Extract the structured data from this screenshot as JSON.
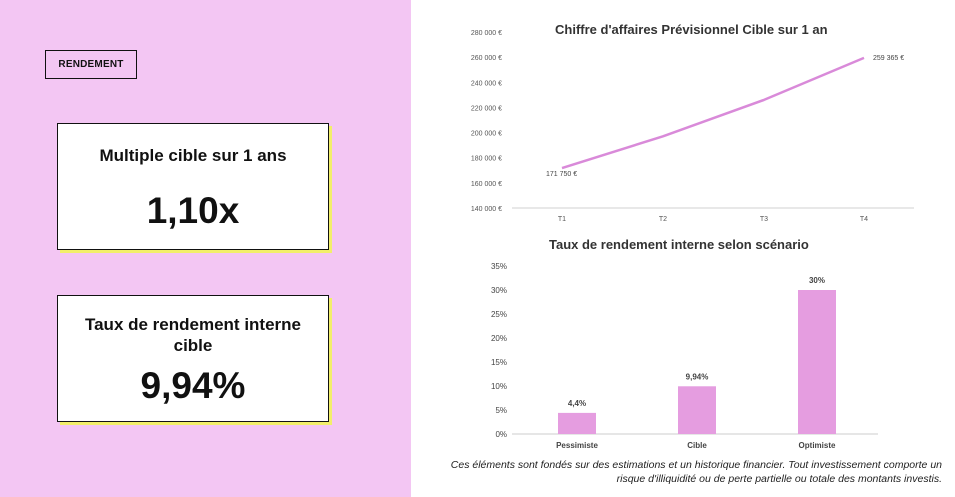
{
  "left_panel": {
    "badge": "RENDEMENT",
    "card1": {
      "title": "Multiple cible sur 1 ans",
      "value": "1,10x"
    },
    "card2": {
      "title": "Taux de rendement interne cible",
      "value": "9,94%"
    }
  },
  "colors": {
    "panel_bg": "#f3c6f3",
    "line": "#d98ad9",
    "bar": "#e59de0",
    "card_shadow": "#f2ef6a"
  },
  "note": "Ces éléments sont fondés sur des estimations et un historique financier. Tout investissement comporte un risque d'illiquidité ou de perte partielle ou totale des montants investis.",
  "chart_data": [
    {
      "type": "line",
      "title": "Chiffre d'affaires Prévisionnel Cible sur 1 an",
      "categories": [
        "T1",
        "T2",
        "T3",
        "T4"
      ],
      "values": [
        171750,
        197000,
        226000,
        259365
      ],
      "ylim": [
        140000,
        280000
      ],
      "yticks": [
        140000,
        160000,
        180000,
        200000,
        220000,
        240000,
        260000,
        280000
      ],
      "ytick_labels": [
        "140 000 €",
        "160 000 €",
        "180 000 €",
        "200 000 €",
        "220 000 €",
        "240 000 €",
        "260 000 €",
        "280 000 €"
      ],
      "data_labels": [
        {
          "index": 0,
          "text": "171 750 €"
        },
        {
          "index": 3,
          "text": "259 365 €"
        }
      ],
      "grid": false
    },
    {
      "type": "bar",
      "title": "Taux de rendement interne selon scénario",
      "categories": [
        "Pessimiste",
        "Cible",
        "Optimiste"
      ],
      "values": [
        4.4,
        9.94,
        30
      ],
      "data_labels": [
        "4,4%",
        "9,94%",
        "30%"
      ],
      "ylim": [
        0,
        35
      ],
      "yticks": [
        0,
        5,
        10,
        15,
        20,
        25,
        30,
        35
      ],
      "ytick_labels": [
        "0%",
        "5%",
        "10%",
        "15%",
        "20%",
        "25%",
        "30%",
        "35%"
      ],
      "grid": false
    }
  ]
}
